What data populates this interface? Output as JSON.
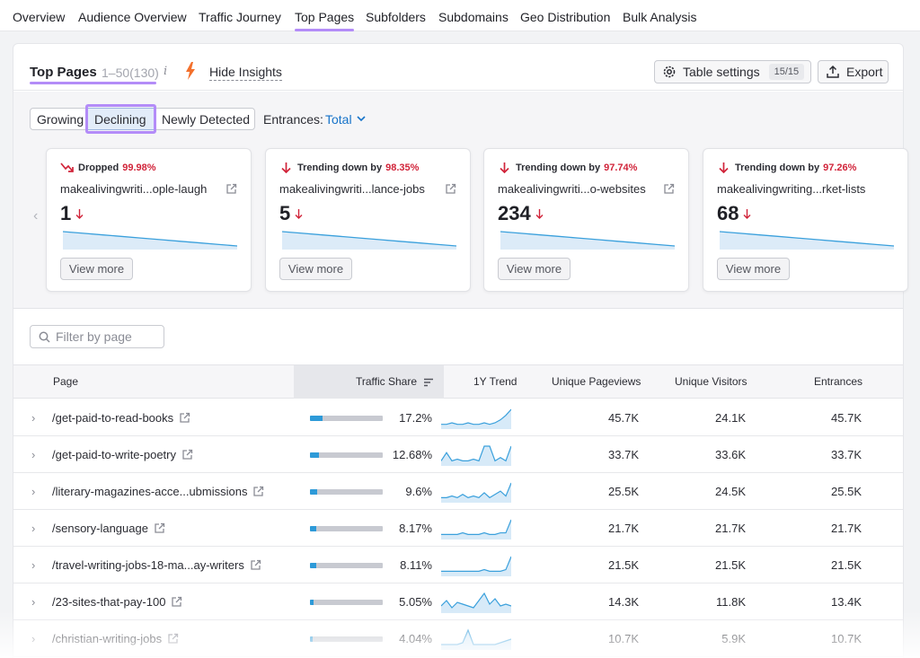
{
  "nav": {
    "tabs": [
      {
        "label": "Overview"
      },
      {
        "label": "Audience Overview"
      },
      {
        "label": "Traffic Journey"
      },
      {
        "label": "Top Pages",
        "active": true
      },
      {
        "label": "Subfolders"
      },
      {
        "label": "Subdomains"
      },
      {
        "label": "Geo Distribution"
      },
      {
        "label": "Bulk Analysis"
      }
    ]
  },
  "header": {
    "title": "Top Pages",
    "range": "1–50(130)",
    "info_icon": "i",
    "hide_insights": "Hide Insights",
    "table_settings": "Table settings",
    "settings_count": "15/15",
    "export": "Export"
  },
  "insights": {
    "segments": [
      "Growing",
      "Declining",
      "Newly Detected"
    ],
    "selected_segment": "Declining",
    "entrances_label": "Entrances:",
    "entrances_value": "Total",
    "cards": [
      {
        "kind": "Dropped",
        "pct": "99.98%",
        "url": "makealivingwriti...ople-laugh",
        "value": "1",
        "view_more": "View more",
        "trend": [
          10,
          9,
          8,
          7,
          6,
          5,
          4,
          3,
          2,
          1
        ]
      },
      {
        "kind": "Trending down by",
        "pct": "98.35%",
        "url": "makealivingwriti...lance-jobs",
        "value": "5",
        "view_more": "View more",
        "trend": [
          10,
          9,
          8,
          7,
          6,
          5,
          4,
          3,
          2,
          1
        ]
      },
      {
        "kind": "Trending down by",
        "pct": "97.74%",
        "url": "makealivingwriti...o-websites",
        "value": "234",
        "view_more": "View more",
        "trend": [
          10,
          9,
          8,
          7,
          6,
          5,
          4,
          3,
          2,
          1
        ]
      },
      {
        "kind": "Trending down by",
        "pct": "97.26%",
        "url": "makealivingwriting...rket-lists",
        "value": "68",
        "view_more": "View more",
        "trend": [
          10,
          9,
          8,
          7,
          6,
          5,
          4,
          3,
          2,
          1
        ]
      }
    ]
  },
  "filter": {
    "placeholder": "Filter by page"
  },
  "table": {
    "columns": [
      "Page",
      "Traffic Share",
      "1Y Trend",
      "Unique Pageviews",
      "Unique Visitors",
      "Entrances"
    ],
    "rows": [
      {
        "page": "/get-paid-to-read-books",
        "share": "17.2%",
        "share_value": 17.2,
        "upv": "45.7K",
        "uv": "24.1K",
        "entrances": "45.7K",
        "trend": [
          2,
          2,
          3,
          2,
          2,
          3,
          2,
          2,
          3,
          2,
          3,
          5,
          8,
          12
        ]
      },
      {
        "page": "/get-paid-to-write-poetry",
        "share": "12.68%",
        "share_value": 12.68,
        "upv": "33.7K",
        "uv": "33.6K",
        "entrances": "33.7K",
        "trend": [
          2,
          7,
          2,
          3,
          2,
          2,
          3,
          2,
          11,
          11,
          2,
          4,
          2,
          11
        ]
      },
      {
        "page": "/literary-magazines-acce...ubmissions",
        "share": "9.6%",
        "share_value": 9.6,
        "upv": "25.5K",
        "uv": "24.5K",
        "entrances": "25.5K",
        "trend": [
          2,
          2,
          3,
          2,
          4,
          2,
          3,
          2,
          5,
          2,
          4,
          6,
          3,
          11
        ]
      },
      {
        "page": "/sensory-language",
        "share": "8.17%",
        "share_value": 8.17,
        "upv": "21.7K",
        "uv": "21.7K",
        "entrances": "21.7K",
        "trend": [
          2,
          2,
          2,
          2,
          3,
          2,
          2,
          2,
          3,
          2,
          2,
          3,
          3,
          11
        ]
      },
      {
        "page": "/travel-writing-jobs-18-ma...ay-writers",
        "share": "8.11%",
        "share_value": 8.11,
        "upv": "21.5K",
        "uv": "21.5K",
        "entrances": "21.5K",
        "trend": [
          2,
          2,
          2,
          2,
          2,
          2,
          2,
          2,
          3,
          2,
          2,
          2,
          3,
          11
        ]
      },
      {
        "page": "/23-sites-that-pay-100",
        "share": "5.05%",
        "share_value": 5.05,
        "upv": "14.3K",
        "uv": "11.8K",
        "entrances": "13.4K",
        "trend": [
          3,
          6,
          2,
          5,
          4,
          3,
          2,
          6,
          10,
          4,
          7,
          3,
          4,
          3
        ]
      },
      {
        "page": "/christian-writing-jobs",
        "share": "4.04%",
        "share_value": 4.04,
        "upv": "10.7K",
        "uv": "5.9K",
        "entrances": "10.7K",
        "trend": [
          2,
          2,
          2,
          2,
          3,
          10,
          2,
          2,
          2,
          2,
          2,
          3,
          4,
          5
        ]
      }
    ]
  },
  "colors": {
    "accent": "#b38cf8",
    "link": "#1673c9",
    "down": "#d1243a",
    "bar": "#2d9ad8",
    "spark": "#3aa0dc"
  }
}
